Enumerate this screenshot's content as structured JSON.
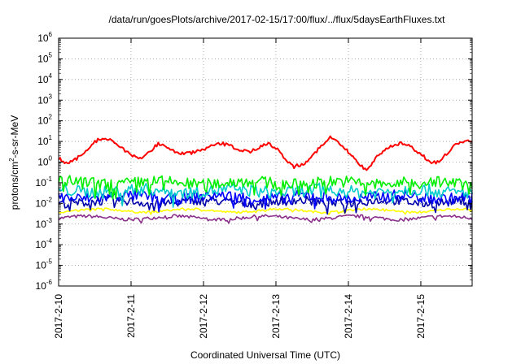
{
  "chart_data": {
    "type": "line",
    "title": "/data/run/goesPlots/archive/2017-02-15/17:00/flux/../flux/5daysEarthFluxes.txt",
    "xlabel": "Coordinated Universal Time (UTC)",
    "ylabel_parts": [
      "protons/cm",
      "2",
      "-s-sr-MeV"
    ],
    "y_scale": "log",
    "ylim": [
      1e-06,
      1000000.0
    ],
    "y_ticks": [
      {
        "value": 1e-06,
        "base": "10",
        "exp": "-6"
      },
      {
        "value": 1e-05,
        "base": "10",
        "exp": "-5"
      },
      {
        "value": 0.0001,
        "base": "10",
        "exp": "-4"
      },
      {
        "value": 0.001,
        "base": "10",
        "exp": "-3"
      },
      {
        "value": 0.01,
        "base": "10",
        "exp": "-2"
      },
      {
        "value": 0.1,
        "base": "10",
        "exp": "-1"
      },
      {
        "value": 1,
        "base": "10",
        "exp": "0"
      },
      {
        "value": 10,
        "base": "10",
        "exp": "1"
      },
      {
        "value": 100,
        "base": "10",
        "exp": "2"
      },
      {
        "value": 1000,
        "base": "10",
        "exp": "3"
      },
      {
        "value": 10000,
        "base": "10",
        "exp": "4"
      },
      {
        "value": 100000,
        "base": "10",
        "exp": "5"
      },
      {
        "value": 1000000,
        "base": "10",
        "exp": "6"
      }
    ],
    "xlim": [
      "2017-02-10 00:00",
      "2017-02-15 17:00"
    ],
    "x_ticks": [
      "2017-2-10",
      "2017-2-11",
      "2017-2-12",
      "2017-2-13",
      "2017-2-14",
      "2017-2-15"
    ],
    "grid": true,
    "series": [
      {
        "color": "#ff0000",
        "values": [
          [
            "2017-02-10 00:00",
            1.5
          ],
          [
            "2017-02-10 03:00",
            0.8
          ],
          [
            "2017-02-10 06:00",
            1.5
          ],
          [
            "2017-02-10 09:00",
            3
          ],
          [
            "2017-02-10 12:00",
            10
          ],
          [
            "2017-02-10 15:00",
            15
          ],
          [
            "2017-02-10 18:00",
            10
          ],
          [
            "2017-02-10 21:00",
            5
          ],
          [
            "2017-02-11 00:00",
            2
          ],
          [
            "2017-02-11 03:00",
            1.5
          ],
          [
            "2017-02-11 06:00",
            3
          ],
          [
            "2017-02-11 09:00",
            8
          ],
          [
            "2017-02-11 12:00",
            5
          ],
          [
            "2017-02-11 15:00",
            3
          ],
          [
            "2017-02-11 18:00",
            2.5
          ],
          [
            "2017-02-11 21:00",
            3
          ],
          [
            "2017-02-12 00:00",
            4
          ],
          [
            "2017-02-12 03:00",
            6
          ],
          [
            "2017-02-12 06:00",
            8
          ],
          [
            "2017-02-12 09:00",
            6
          ],
          [
            "2017-02-12 12:00",
            4
          ],
          [
            "2017-02-12 15:00",
            3
          ],
          [
            "2017-02-12 18:00",
            5
          ],
          [
            "2017-02-12 21:00",
            8
          ],
          [
            "2017-02-13 00:00",
            5
          ],
          [
            "2017-02-13 03:00",
            1.5
          ],
          [
            "2017-02-13 06:00",
            0.6
          ],
          [
            "2017-02-13 09:00",
            0.8
          ],
          [
            "2017-02-13 12:00",
            2
          ],
          [
            "2017-02-13 15:00",
            6
          ],
          [
            "2017-02-13 18:00",
            15
          ],
          [
            "2017-02-13 21:00",
            8
          ],
          [
            "2017-02-14 00:00",
            3
          ],
          [
            "2017-02-14 03:00",
            1
          ],
          [
            "2017-02-14 06:00",
            0.4
          ],
          [
            "2017-02-14 09:00",
            1.5
          ],
          [
            "2017-02-14 12:00",
            4
          ],
          [
            "2017-02-14 15:00",
            7
          ],
          [
            "2017-02-14 18:00",
            8
          ],
          [
            "2017-02-14 21:00",
            5
          ],
          [
            "2017-02-15 00:00",
            2.5
          ],
          [
            "2017-02-15 03:00",
            1
          ],
          [
            "2017-02-15 06:00",
            1
          ],
          [
            "2017-02-15 09:00",
            3
          ],
          [
            "2017-02-15 12:00",
            8
          ],
          [
            "2017-02-15 15:00",
            10
          ],
          [
            "2017-02-15 17:00",
            9
          ]
        ]
      },
      {
        "color": "#00ee00",
        "level": 0.1,
        "spread": 0.28
      },
      {
        "color": "#00cccc",
        "level": 0.04,
        "spread": 0.3
      },
      {
        "color": "#0000ff",
        "level": 0.02,
        "spread": 0.28
      },
      {
        "color": "#0000aa",
        "level": 0.012,
        "spread": 0.22
      },
      {
        "color": "#ffff00",
        "level": 0.0045,
        "spread": 0.05
      },
      {
        "color": "#8b2f8b",
        "level": 0.002,
        "spread": 0.08
      }
    ]
  }
}
